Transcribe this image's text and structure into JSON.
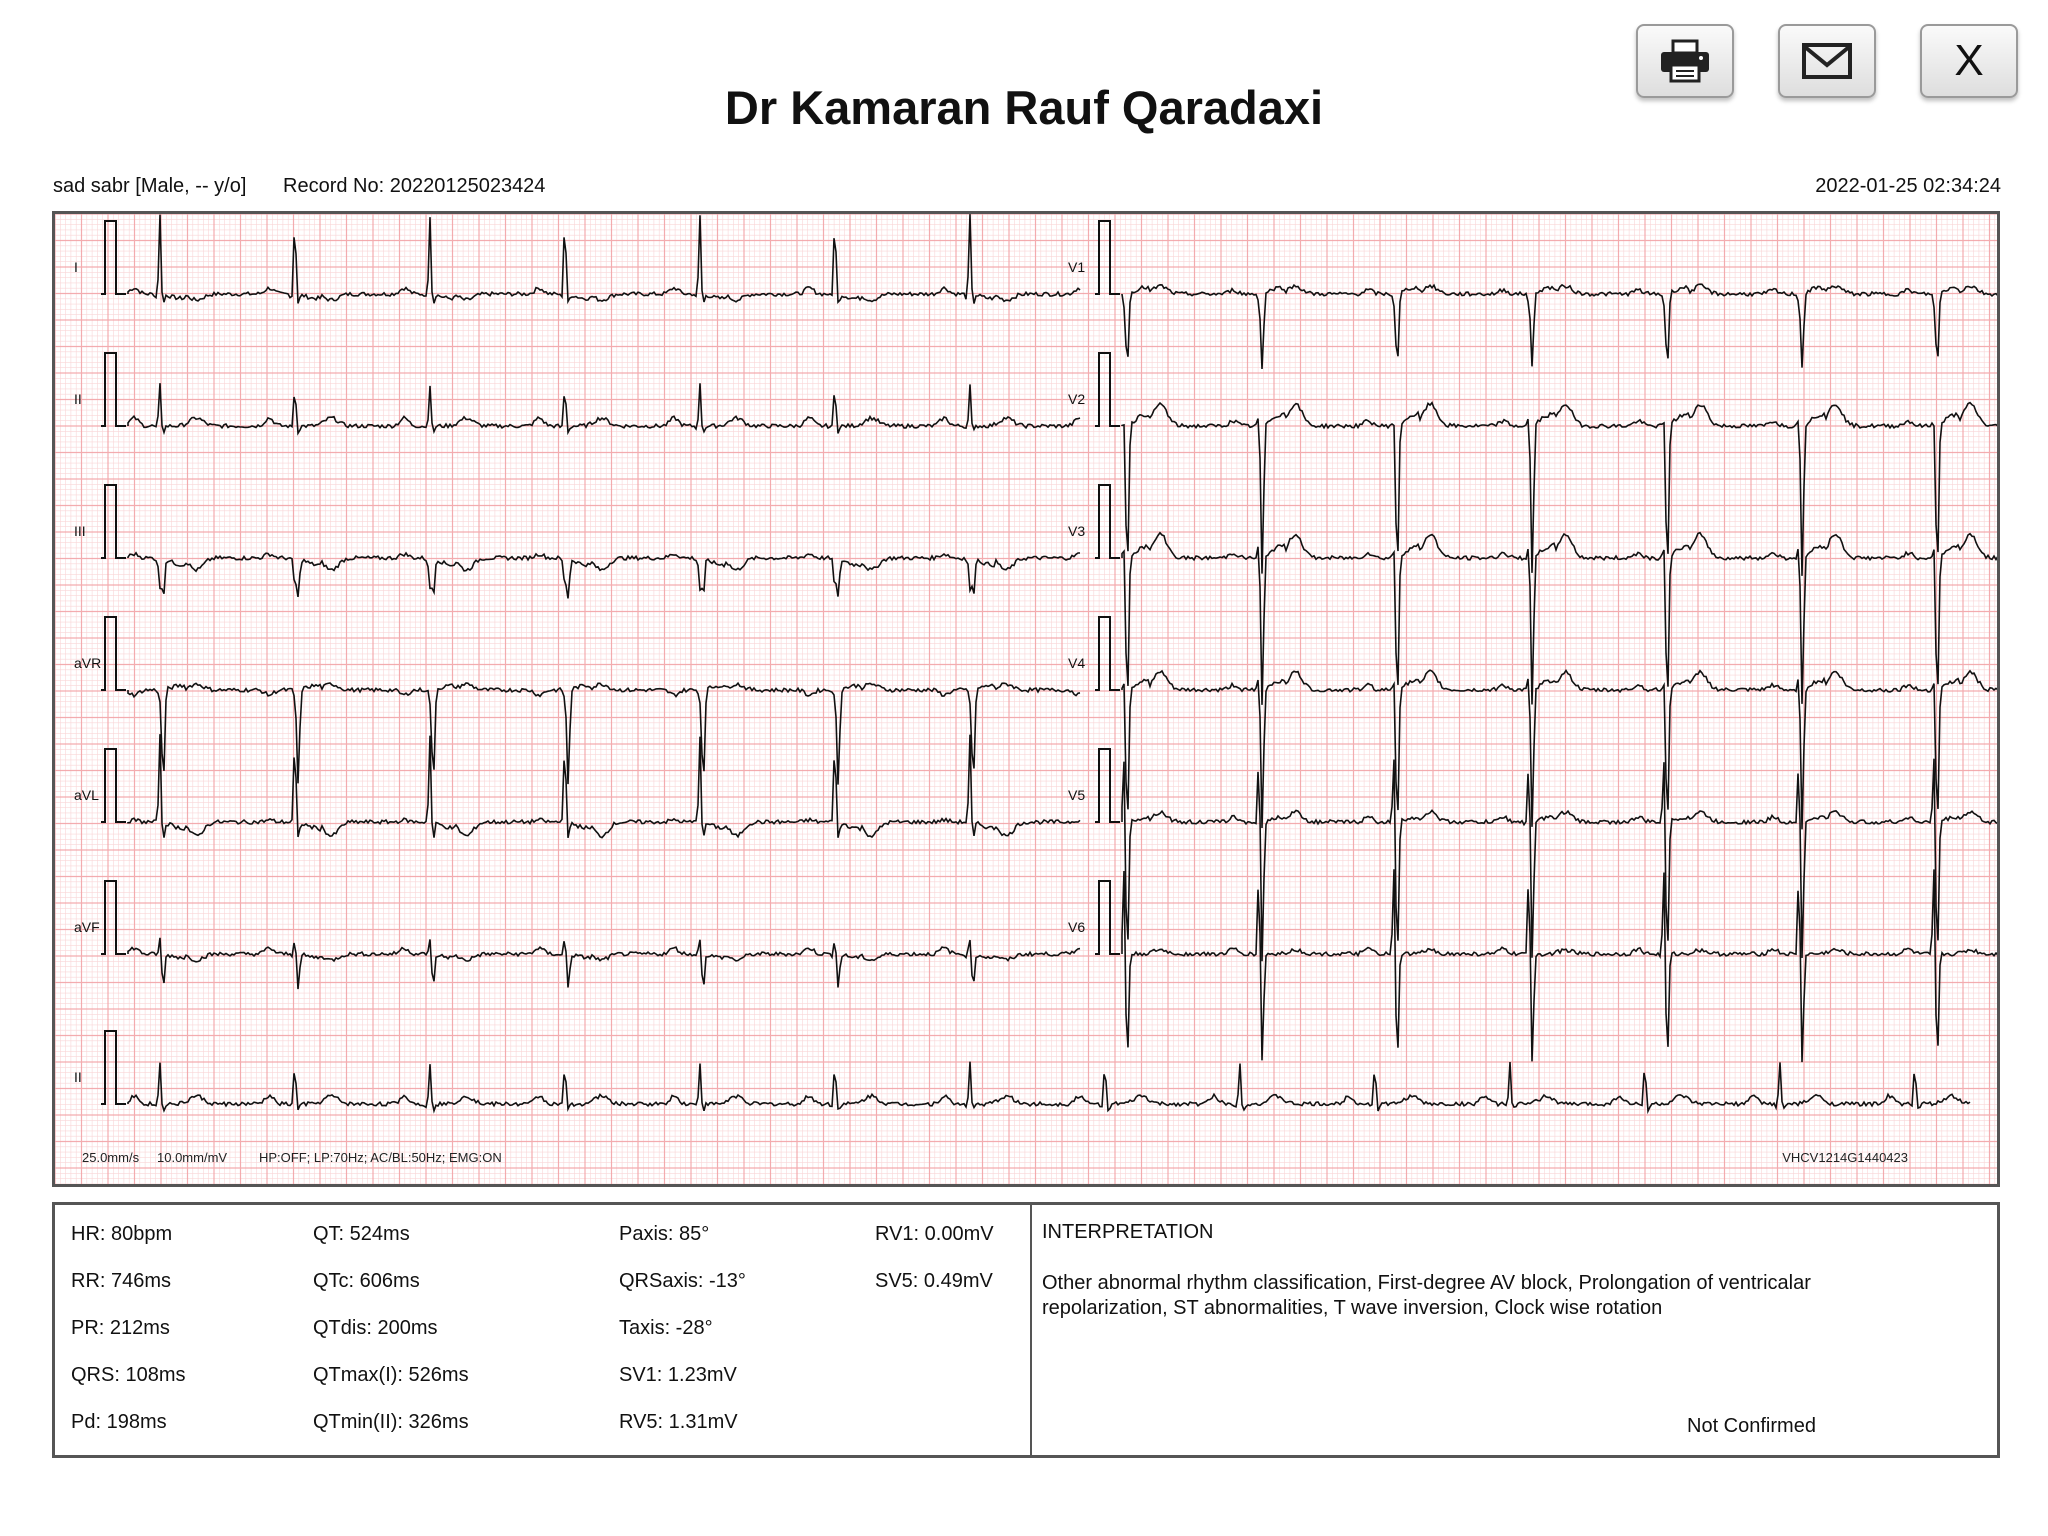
{
  "header": {
    "title": "Dr Kamaran Rauf Qaradaxi",
    "close_label": "X",
    "print_icon": "printer-icon",
    "mail_icon": "mail-icon"
  },
  "patient": {
    "info": "sad sabr [Male, -- y/o]",
    "record": "Record No: 20220125023424",
    "datetime": "2022-01-25 02:34:24"
  },
  "ecg": {
    "leads_left": [
      "I",
      "II",
      "III",
      "aVR",
      "aVL",
      "aVF"
    ],
    "leads_right": [
      "V1",
      "V2",
      "V3",
      "V4",
      "V5",
      "V6"
    ],
    "rhythm_lead": "II",
    "settings_speed": "25.0mm/s",
    "settings_gain": "10.0mm/mV",
    "filters": "HP:OFF; LP:70Hz; AC/BL:50Hz; EMG:ON",
    "device_id": "VHCV1214G1440423",
    "grid_color": "#f2a3a6",
    "trace_color": "#111111"
  },
  "measurements": [
    [
      "HR: 80bpm",
      "RR: 746ms",
      "PR: 212ms",
      "QRS: 108ms",
      "Pd: 198ms"
    ],
    [
      "QT: 524ms",
      "QTc: 606ms",
      "QTdis: 200ms",
      "QTmax(I): 526ms",
      "QTmin(II): 326ms"
    ],
    [
      "Paxis: 85°",
      "QRSaxis: -13°",
      "Taxis: -28°",
      "SV1: 1.23mV",
      "RV5: 1.31mV"
    ],
    [
      "RV1: 0.00mV",
      "SV5: 0.49mV"
    ]
  ],
  "interpretation": {
    "heading": "INTERPRETATION",
    "text": "Other abnormal rhythm classification, First-degree AV block, Prolongation of ventricalar repolarization, ST abnormalities, T wave inversion, Clock wise rotation",
    "status": "Not Confirmed"
  }
}
